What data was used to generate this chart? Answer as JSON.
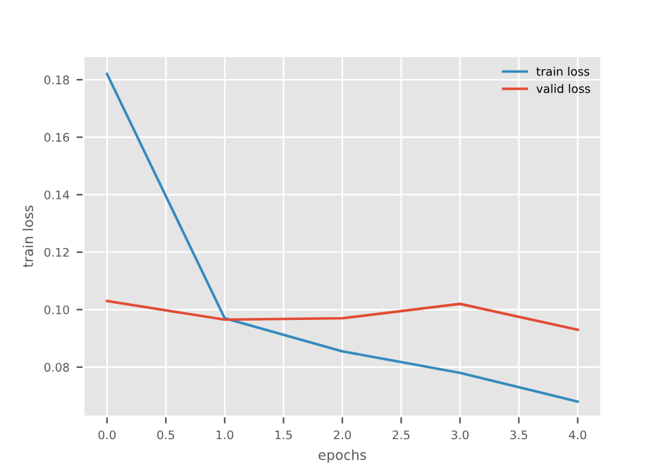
{
  "chart_data": {
    "type": "line",
    "xlabel": "epochs",
    "ylabel": "train loss",
    "x": [
      0,
      1,
      2,
      3,
      4
    ],
    "series": [
      {
        "name": "train loss",
        "color": "#348abd",
        "values": [
          0.182,
          0.097,
          0.0855,
          0.078,
          0.068
        ]
      },
      {
        "name": "valid loss",
        "color": "#e24a33",
        "values": [
          0.103,
          0.0965,
          0.097,
          0.102,
          0.093
        ]
      }
    ],
    "xlim": [
      -0.2,
      4.2
    ],
    "xticks": [
      {
        "value": 0,
        "label": "0.0"
      },
      {
        "value": 0.5,
        "label": "0.5"
      },
      {
        "value": 1,
        "label": "1.0"
      },
      {
        "value": 1.5,
        "label": "1.5"
      },
      {
        "value": 2,
        "label": "2.0"
      },
      {
        "value": 2.5,
        "label": "2.5"
      },
      {
        "value": 3,
        "label": "3.0"
      },
      {
        "value": 3.5,
        "label": "3.5"
      },
      {
        "value": 4,
        "label": "4.0"
      }
    ],
    "ylim": [
      0.0628,
      0.1882
    ],
    "yticks": [
      {
        "value": 0.08,
        "label": "0.08"
      },
      {
        "value": 0.1,
        "label": "0.10"
      },
      {
        "value": 0.12,
        "label": "0.12"
      },
      {
        "value": 0.14,
        "label": "0.14"
      },
      {
        "value": 0.16,
        "label": "0.16"
      },
      {
        "value": 0.18,
        "label": "0.18"
      }
    ],
    "grid": true,
    "legend": "top right",
    "marker": "none",
    "line_style": "solid"
  }
}
